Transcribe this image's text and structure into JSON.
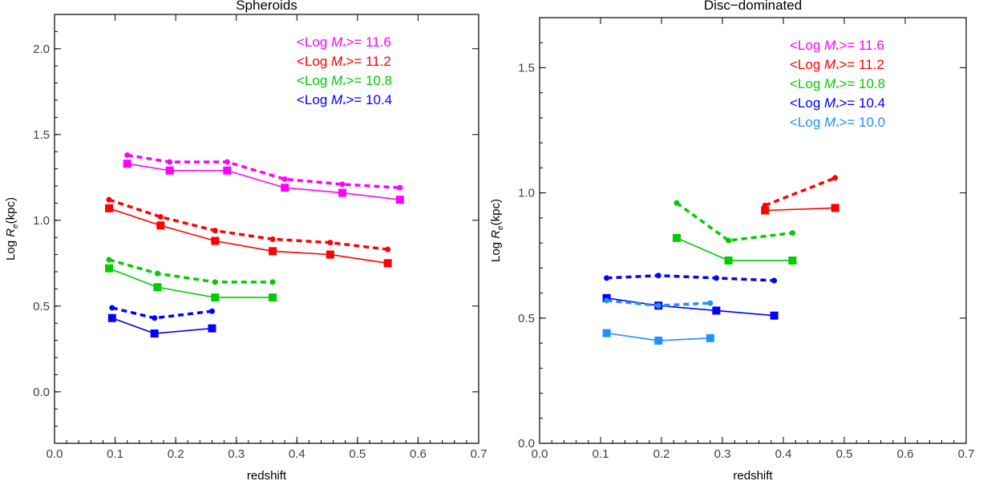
{
  "chart_data": [
    {
      "type": "line",
      "title": "Spheroids",
      "xlabel": "redshift",
      "ylabel_prefix": "Log ",
      "ylabel_var": "R",
      "ylabel_sub": "e",
      "ylabel_suffix": "(kpc)",
      "xlim": [
        0.0,
        0.7
      ],
      "ylim": [
        -0.3,
        2.2
      ],
      "xticks": [
        0.0,
        0.1,
        0.2,
        0.3,
        0.4,
        0.5,
        0.6,
        0.7
      ],
      "yticks": [
        0.0,
        0.5,
        1.0,
        1.5,
        2.0
      ],
      "xtick_labels": [
        "0.0",
        "0.1",
        "0.2",
        "0.3",
        "0.4",
        "0.5",
        "0.6",
        "0.7"
      ],
      "ytick_labels": [
        "0.0",
        "0.5",
        "1.0",
        "1.5",
        "2.0"
      ],
      "legend_position": "top-right",
      "legend": [
        {
          "prefix": "<Log ",
          "var": "M",
          "sub": "*",
          "suffix": ">= 11.6",
          "color": "#ff00ff"
        },
        {
          "prefix": "<Log ",
          "var": "M",
          "sub": "*",
          "suffix": ">= 11.2",
          "color": "#ff0000"
        },
        {
          "prefix": "<Log ",
          "var": "M",
          "sub": "*",
          "suffix": ">= 10.8",
          "color": "#00cc00"
        },
        {
          "prefix": "<Log ",
          "var": "M",
          "sub": "*",
          "suffix": ">= 10.4",
          "color": "#0000ff"
        }
      ],
      "series": [
        {
          "color": "#ff00ff",
          "style": "solid",
          "x": [
            0.12,
            0.19,
            0.285,
            0.38,
            0.475,
            0.57
          ],
          "y": [
            1.33,
            1.29,
            1.29,
            1.19,
            1.16,
            1.12
          ]
        },
        {
          "color": "#ff00ff",
          "style": "dashed",
          "x": [
            0.12,
            0.19,
            0.285,
            0.38,
            0.475,
            0.57
          ],
          "y": [
            1.38,
            1.34,
            1.34,
            1.24,
            1.21,
            1.19
          ]
        },
        {
          "color": "#ff0000",
          "style": "solid",
          "x": [
            0.09,
            0.175,
            0.265,
            0.36,
            0.455,
            0.55
          ],
          "y": [
            1.07,
            0.97,
            0.88,
            0.82,
            0.8,
            0.75
          ]
        },
        {
          "color": "#ff0000",
          "style": "dashed",
          "x": [
            0.09,
            0.175,
            0.265,
            0.36,
            0.455,
            0.55
          ],
          "y": [
            1.12,
            1.02,
            0.94,
            0.89,
            0.87,
            0.83
          ]
        },
        {
          "color": "#00cc00",
          "style": "solid",
          "x": [
            0.09,
            0.17,
            0.265,
            0.36
          ],
          "y": [
            0.72,
            0.61,
            0.55,
            0.55
          ]
        },
        {
          "color": "#00cc00",
          "style": "dashed",
          "x": [
            0.09,
            0.17,
            0.265,
            0.36
          ],
          "y": [
            0.77,
            0.69,
            0.64,
            0.64
          ]
        },
        {
          "color": "#0000ff",
          "style": "solid",
          "x": [
            0.095,
            0.165,
            0.26
          ],
          "y": [
            0.43,
            0.34,
            0.37
          ]
        },
        {
          "color": "#0000ff",
          "style": "dashed",
          "x": [
            0.095,
            0.165,
            0.26
          ],
          "y": [
            0.49,
            0.43,
            0.47
          ]
        }
      ]
    },
    {
      "type": "line",
      "title": "Disc−dominated",
      "xlabel": "redshift",
      "ylabel_prefix": "Log ",
      "ylabel_var": "R",
      "ylabel_sub": "e",
      "ylabel_suffix": "(kpc)",
      "xlim": [
        0.0,
        0.7
      ],
      "ylim": [
        0.0,
        1.7
      ],
      "xticks": [
        0.0,
        0.1,
        0.2,
        0.3,
        0.4,
        0.5,
        0.6,
        0.7
      ],
      "yticks": [
        0.0,
        0.5,
        1.0,
        1.5
      ],
      "xtick_labels": [
        "0.0",
        "0.1",
        "0.2",
        "0.3",
        "0.4",
        "0.5",
        "0.6",
        "0.7"
      ],
      "ytick_labels": [
        "0.0",
        "0.5",
        "1.0",
        "1.5"
      ],
      "legend_position": "top-right",
      "legend": [
        {
          "prefix": "<Log ",
          "var": "M",
          "sub": "*",
          "suffix": ">= 11.6",
          "color": "#ff00ff"
        },
        {
          "prefix": "<Log ",
          "var": "M",
          "sub": "*",
          "suffix": ">= 11.2",
          "color": "#ff0000"
        },
        {
          "prefix": "<Log ",
          "var": "M",
          "sub": "*",
          "suffix": ">= 10.8",
          "color": "#00cc00"
        },
        {
          "prefix": "<Log ",
          "var": "M",
          "sub": "*",
          "suffix": ">= 10.4",
          "color": "#0000ff"
        },
        {
          "prefix": "<Log ",
          "var": "M",
          "sub": "*",
          "suffix": ">= 10.0",
          "color": "#1e90ff"
        }
      ],
      "series": [
        {
          "color": "#ff0000",
          "style": "solid",
          "x": [
            0.37,
            0.485
          ],
          "y": [
            0.93,
            0.94
          ]
        },
        {
          "color": "#ff0000",
          "style": "dashed",
          "x": [
            0.37,
            0.485
          ],
          "y": [
            0.95,
            1.06
          ]
        },
        {
          "color": "#00cc00",
          "style": "solid",
          "x": [
            0.225,
            0.31,
            0.415
          ],
          "y": [
            0.82,
            0.73,
            0.73
          ]
        },
        {
          "color": "#00cc00",
          "style": "dashed",
          "x": [
            0.225,
            0.31,
            0.415
          ],
          "y": [
            0.96,
            0.81,
            0.84
          ]
        },
        {
          "color": "#0000ff",
          "style": "solid",
          "x": [
            0.11,
            0.195,
            0.29,
            0.385
          ],
          "y": [
            0.58,
            0.55,
            0.53,
            0.51
          ]
        },
        {
          "color": "#0000ff",
          "style": "dashed",
          "x": [
            0.11,
            0.195,
            0.29,
            0.385
          ],
          "y": [
            0.66,
            0.67,
            0.66,
            0.65
          ]
        },
        {
          "color": "#1e90ff",
          "style": "solid",
          "x": [
            0.11,
            0.195,
            0.28
          ],
          "y": [
            0.44,
            0.41,
            0.42
          ]
        },
        {
          "color": "#1e90ff",
          "style": "dashed",
          "x": [
            0.11,
            0.195,
            0.28
          ],
          "y": [
            0.57,
            0.55,
            0.56
          ]
        }
      ]
    }
  ]
}
